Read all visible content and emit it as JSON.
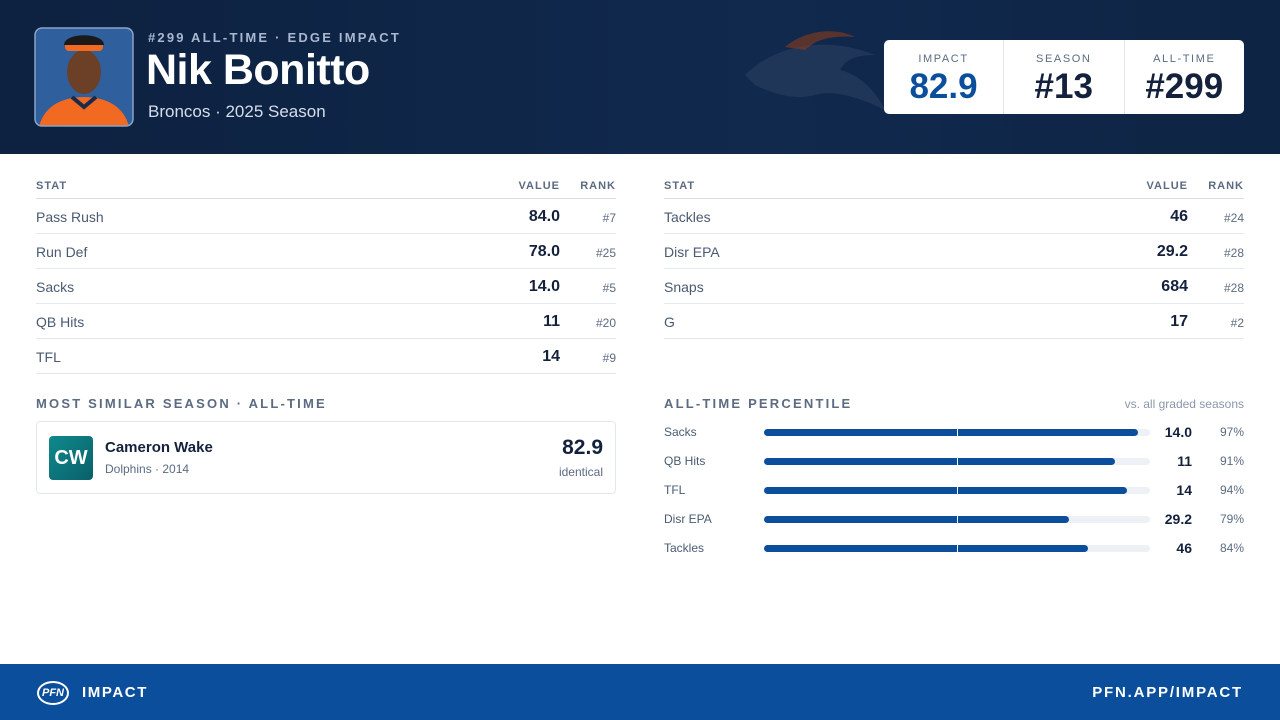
{
  "header": {
    "eyebrow": "#299 ALL-TIME · EDGE IMPACT",
    "name": "Nik Bonitto",
    "subtitle": "Broncos · 2025 Season",
    "scores": [
      {
        "label": "IMPACT",
        "value": "82.9"
      },
      {
        "label": "SEASON",
        "value": "#13"
      },
      {
        "label": "ALL-TIME",
        "value": "#299"
      }
    ]
  },
  "stat_tables": [
    {
      "columns": [
        "STAT",
        "VALUE",
        "RANK"
      ],
      "rows": [
        [
          "Pass Rush",
          "84.0",
          "#7"
        ],
        [
          "Run Def",
          "78.0",
          "#25"
        ],
        [
          "Sacks",
          "14.0",
          "#5"
        ],
        [
          "QB Hits",
          "11",
          "#20"
        ],
        [
          "TFL",
          "14",
          "#9"
        ]
      ]
    },
    {
      "columns": [
        "STAT",
        "VALUE",
        "RANK"
      ],
      "rows": [
        [
          "Tackles",
          "46",
          "#24"
        ],
        [
          "Disr EPA",
          "29.2",
          "#28"
        ],
        [
          "Snaps",
          "684",
          "#28"
        ],
        [
          "G",
          "17",
          "#2"
        ]
      ]
    }
  ],
  "similar": {
    "heading": "MOST SIMILAR SEASON · ALL-TIME",
    "initials": "CW",
    "name": "Cameron Wake",
    "detail": "Dolphins · 2014",
    "score": "82.9",
    "note": "identical"
  },
  "percentile": {
    "heading": "ALL-TIME PERCENTILE",
    "note": "vs. all graded seasons",
    "rows": [
      {
        "stat": "Sacks",
        "value": "14.0",
        "percentile": 97,
        "percentile_label": "97%"
      },
      {
        "stat": "QB Hits",
        "value": "11",
        "percentile": 91,
        "percentile_label": "91%"
      },
      {
        "stat": "TFL",
        "value": "14",
        "percentile": 94,
        "percentile_label": "94%"
      },
      {
        "stat": "Disr EPA",
        "value": "29.2",
        "percentile": 79,
        "percentile_label": "79%"
      },
      {
        "stat": "Tackles",
        "value": "46",
        "percentile": 84,
        "percentile_label": "84%"
      }
    ]
  },
  "footer": {
    "logo": "PFN",
    "brand": "IMPACT",
    "url": "PFN.APP/IMPACT"
  }
}
